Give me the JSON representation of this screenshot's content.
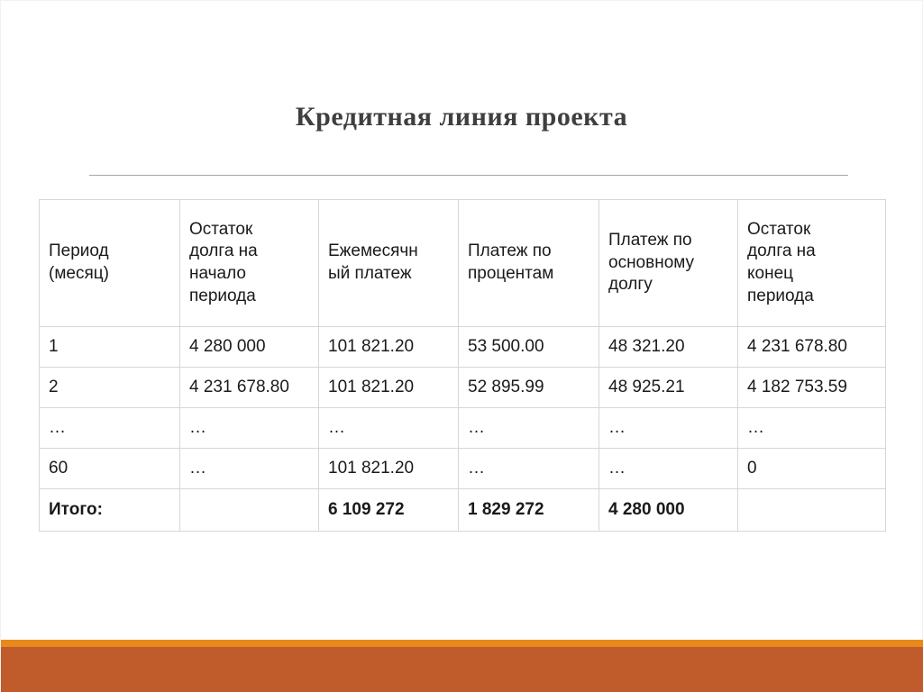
{
  "slide": {
    "title": "Кредитная линия проекта",
    "colors": {
      "title_text": "#3f3f3f",
      "divider": "#a6a6a6",
      "table_border": "#d6d6d6",
      "accent_gold": "#e8891d",
      "accent_rust": "#c05b2b"
    }
  },
  "table": {
    "headers": [
      "Период\n(месяц)",
      "Остаток\nдолга на\nначало\nпериода",
      "Ежемесячн\nый платеж",
      "Платеж по\nпроцентам",
      "Платеж по\nосновному\nдолгу",
      "Остаток\nдолга на\nконец\nпериода"
    ],
    "rows": [
      {
        "cells": [
          "1",
          "4 280 000",
          "101 821.20",
          "53 500.00",
          "48 321.20",
          "4 231 678.80"
        ],
        "bold": false
      },
      {
        "cells": [
          "2",
          "4 231 678.80",
          "101 821.20",
          "52 895.99",
          "48 925.21",
          "4 182 753.59"
        ],
        "bold": false
      },
      {
        "cells": [
          "…",
          "…",
          "…",
          "…",
          "…",
          "…"
        ],
        "bold": false
      },
      {
        "cells": [
          "60",
          "…",
          "101 821.20",
          "…",
          "…",
          "0"
        ],
        "bold": false
      },
      {
        "cells": [
          "Итого:",
          "",
          "6 109 272",
          "1 829 272",
          "4 280 000",
          ""
        ],
        "bold": true
      }
    ]
  }
}
